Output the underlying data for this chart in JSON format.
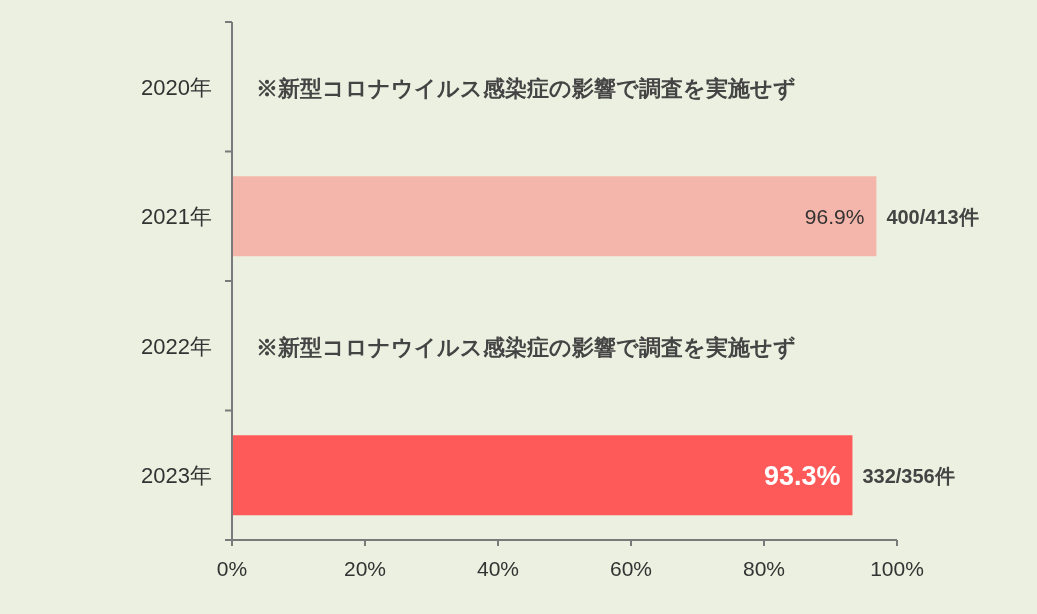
{
  "chart_data": {
    "type": "bar",
    "orientation": "horizontal",
    "categories": [
      "2020年",
      "2021年",
      "2022年",
      "2023年"
    ],
    "values": [
      null,
      96.9,
      null,
      93.3
    ],
    "colors": [
      null,
      "#f4b6ab",
      null,
      "#ff5a5a"
    ],
    "value_labels": [
      null,
      "96.9%",
      null,
      "93.3%"
    ],
    "xlim": [
      0,
      100
    ],
    "xticks": [
      {
        "value": 0,
        "label": "0%"
      },
      {
        "value": 20,
        "label": "20%"
      },
      {
        "value": 40,
        "label": "40%"
      },
      {
        "value": 60,
        "label": "60%"
      },
      {
        "value": 80,
        "label": "80%"
      },
      {
        "value": 100,
        "label": "100%"
      }
    ],
    "annotations": [
      "※新型コロナウイルス感染症の影響で調査を実施せず",
      {
        "text": "400/413件",
        "x": 96.9,
        "y": "2021年"
      },
      "※新型コロナウイルス感染症の影響で調査を実施せず",
      {
        "text": "332/356件",
        "x": 93.3,
        "y": "2023年"
      }
    ],
    "grid": false
  }
}
